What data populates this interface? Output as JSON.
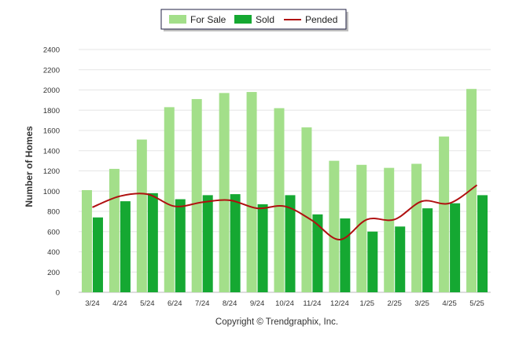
{
  "chart_data": {
    "type": "bar",
    "title": "",
    "xlabel": "",
    "ylabel": "Number of Homes",
    "ylim": [
      0,
      2400
    ],
    "yticks": [
      0,
      200,
      400,
      600,
      800,
      1000,
      1200,
      1400,
      1600,
      1800,
      2000,
      2200,
      2400
    ],
    "grid": true,
    "legend_position": "top-center",
    "categories": [
      "3/24",
      "4/24",
      "5/24",
      "6/24",
      "7/24",
      "8/24",
      "9/24",
      "10/24",
      "11/24",
      "12/24",
      "1/25",
      "2/25",
      "3/25",
      "4/25",
      "5/25"
    ],
    "series": [
      {
        "name": "For Sale",
        "type": "bar",
        "color": "#a3df8a",
        "values": [
          1010,
          1220,
          1510,
          1830,
          1910,
          1970,
          1980,
          1820,
          1630,
          1300,
          1260,
          1230,
          1270,
          1540,
          2010
        ]
      },
      {
        "name": "Sold",
        "type": "bar",
        "color": "#15a832",
        "values": [
          740,
          900,
          980,
          920,
          960,
          970,
          870,
          960,
          770,
          730,
          600,
          650,
          830,
          880,
          960
        ]
      },
      {
        "name": "Pended",
        "type": "line",
        "color": "#b01010",
        "values": [
          840,
          950,
          970,
          850,
          890,
          910,
          830,
          850,
          710,
          520,
          720,
          720,
          900,
          880,
          1060
        ]
      }
    ]
  },
  "legend": {
    "items": [
      "For Sale",
      "Sold",
      "Pended"
    ]
  },
  "footer": {
    "credit": "Copyright © Trendgraphix, Inc."
  }
}
